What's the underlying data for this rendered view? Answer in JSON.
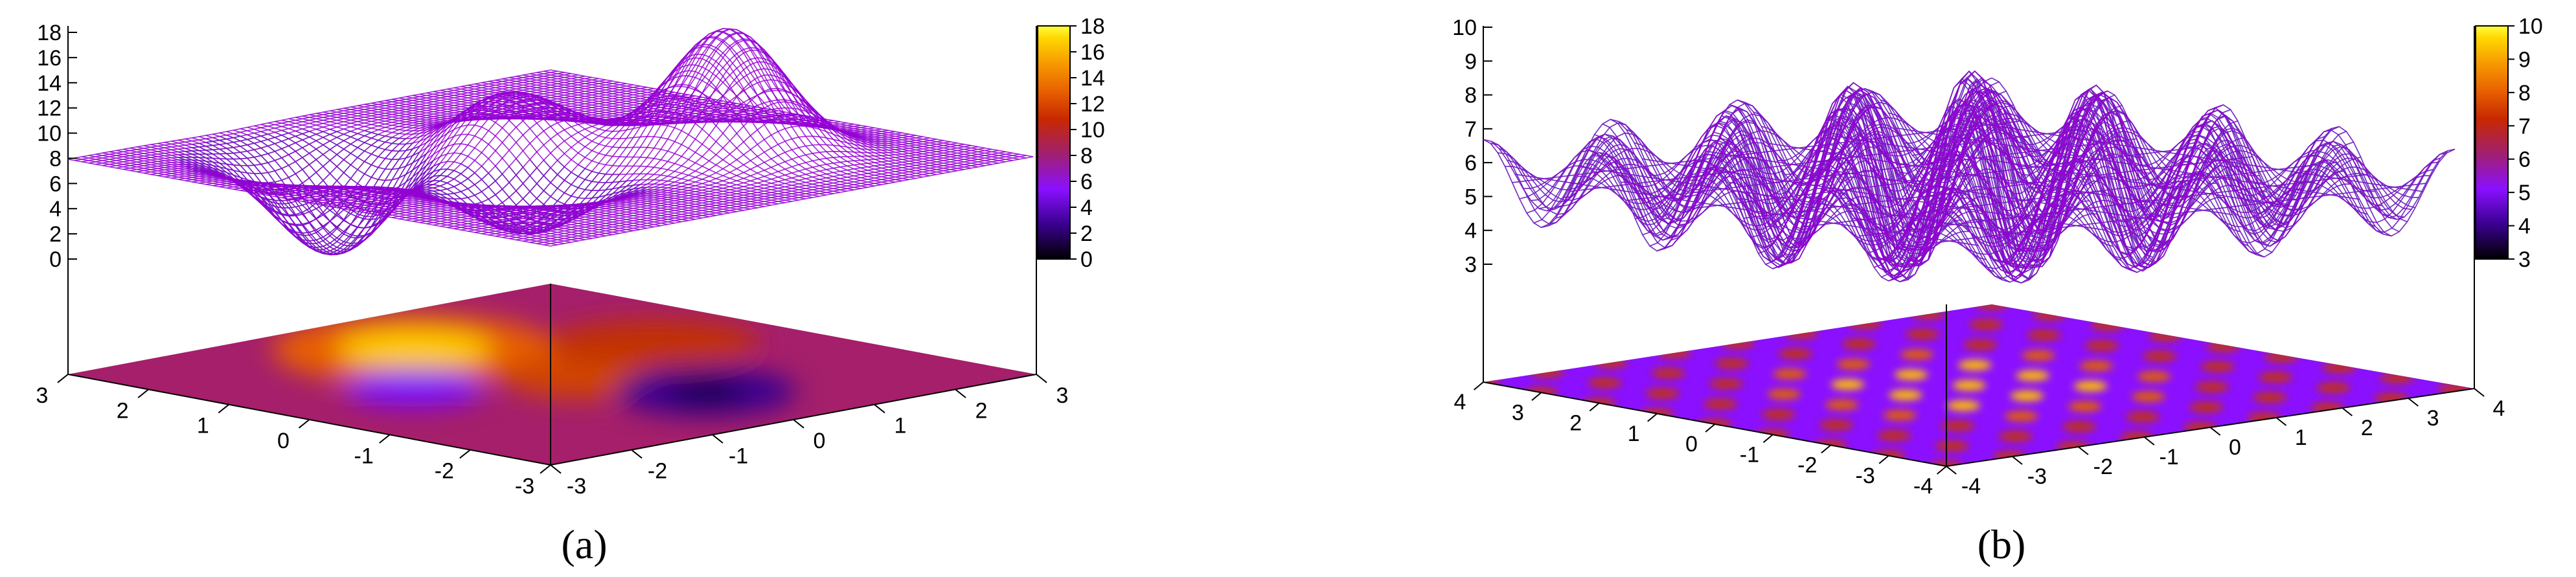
{
  "chart_data": [
    {
      "type": "surface3d",
      "caption": "(a)",
      "z_ticks": [
        0,
        2,
        4,
        6,
        8,
        10,
        12,
        14,
        16,
        18
      ],
      "zlim": [
        0,
        18
      ],
      "colorbar_ticks": [
        0,
        2,
        4,
        6,
        8,
        10,
        12,
        14,
        16,
        18
      ],
      "colorbar_range": [
        0,
        18
      ],
      "x_ticks": [
        3,
        2,
        1,
        0,
        -1,
        -2,
        -3
      ],
      "y_ticks": [
        -3,
        -2,
        -1,
        0,
        1,
        2,
        3
      ],
      "xlim": [
        -3,
        3
      ],
      "ylim": [
        -3,
        3
      ],
      "baseline_z": 8,
      "colors": {
        "surface_top": "#9400d3",
        "surface_under": "#00a080"
      },
      "colormap": [
        "#000000",
        "#3a0090",
        "#8a10ff",
        "#a02070",
        "#c82800",
        "#e86000",
        "#f8a000",
        "#ffd800",
        "#ffff40"
      ],
      "features": [
        {
          "kind": "peak",
          "x": -1.0,
          "y": 1.2,
          "z": 18
        },
        {
          "kind": "peak",
          "x": 0.6,
          "y": 0.1,
          "z": 12.5
        },
        {
          "kind": "valley",
          "x": 1.5,
          "y": -1.2,
          "z": 0
        },
        {
          "kind": "valley",
          "x": -0.5,
          "y": -0.8,
          "z": 3.5
        }
      ]
    },
    {
      "type": "surface3d",
      "caption": "(b)",
      "z_ticks": [
        3,
        4,
        5,
        6,
        7,
        8,
        9,
        10
      ],
      "zlim": [
        3,
        10
      ],
      "colorbar_ticks": [
        3,
        4,
        5,
        6,
        7,
        8,
        9,
        10
      ],
      "colorbar_range": [
        3,
        10
      ],
      "x_ticks": [
        4,
        3,
        2,
        1,
        0,
        -1,
        -2,
        -3,
        -4
      ],
      "y_ticks": [
        -4,
        -3,
        -2,
        -1,
        0,
        1,
        2,
        3,
        4
      ],
      "xlim": [
        -4,
        4
      ],
      "ylim": [
        -4,
        4
      ],
      "baseline_z": 5.5,
      "colors": {
        "surface_top": "#9400d3",
        "surface_under": "#00a080"
      },
      "colormap": [
        "#000000",
        "#3a0090",
        "#8a10ff",
        "#a02070",
        "#c82800",
        "#e86000",
        "#f8a000",
        "#ffd800",
        "#ffff40"
      ],
      "features": [
        {
          "kind": "oscillation",
          "period": 1.0,
          "z_min": 3.3,
          "z_max": 9.7
        }
      ]
    }
  ]
}
